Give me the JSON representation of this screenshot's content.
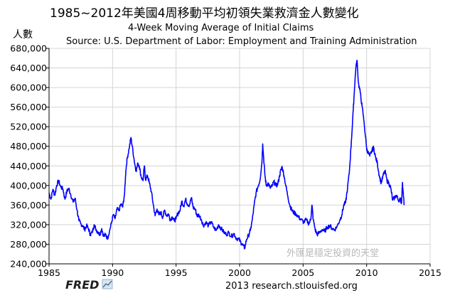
{
  "chart_data": {
    "type": "line",
    "title": "1985~2012年美國4周移動平均初領失業救濟金人數變化",
    "ylabel": "人數",
    "subtitle_line1": "4-Week Moving Average of Initial Claims",
    "subtitle_line2": "Source: U.S. Department of Labor: Employment and Training Administration",
    "xlim": [
      1985,
      2015
    ],
    "ylim": [
      240000,
      680000
    ],
    "x_ticks": [
      1985,
      1990,
      1995,
      2000,
      2005,
      2010,
      2015
    ],
    "x_tick_labels": [
      "1985",
      "1990",
      "1995",
      "2000",
      "2005",
      "2010",
      "2015"
    ],
    "y_ticks": [
      240000,
      280000,
      320000,
      360000,
      400000,
      440000,
      480000,
      520000,
      560000,
      600000,
      640000,
      680000
    ],
    "y_tick_labels": [
      "240,000",
      "280,000",
      "320,000",
      "360,000",
      "400,000",
      "440,000",
      "480,000",
      "520,000",
      "560,000",
      "600,000",
      "640,000",
      "680,000"
    ],
    "grid": true,
    "line_color": "#0000ff",
    "series": [
      {
        "values": [
          [
            1985.0,
            385000
          ],
          [
            1985.15,
            372000
          ],
          [
            1985.3,
            392000
          ],
          [
            1985.45,
            380000
          ],
          [
            1985.6,
            400000
          ],
          [
            1985.75,
            410000
          ],
          [
            1985.9,
            398000
          ],
          [
            1986.1,
            392000
          ],
          [
            1986.25,
            372000
          ],
          [
            1986.4,
            388000
          ],
          [
            1986.55,
            394000
          ],
          [
            1986.7,
            382000
          ],
          [
            1986.9,
            366000
          ],
          [
            1987.05,
            374000
          ],
          [
            1987.2,
            350000
          ],
          [
            1987.35,
            328000
          ],
          [
            1987.5,
            322000
          ],
          [
            1987.65,
            318000
          ],
          [
            1987.8,
            310000
          ],
          [
            1987.95,
            318000
          ],
          [
            1988.1,
            312000
          ],
          [
            1988.25,
            300000
          ],
          [
            1988.4,
            304000
          ],
          [
            1988.55,
            320000
          ],
          [
            1988.7,
            310000
          ],
          [
            1988.85,
            305000
          ],
          [
            1989.0,
            300000
          ],
          [
            1989.15,
            312000
          ],
          [
            1989.3,
            296000
          ],
          [
            1989.45,
            300000
          ],
          [
            1989.6,
            292000
          ],
          [
            1989.75,
            306000
          ],
          [
            1989.9,
            322000
          ],
          [
            1990.05,
            340000
          ],
          [
            1990.2,
            332000
          ],
          [
            1990.35,
            352000
          ],
          [
            1990.5,
            348000
          ],
          [
            1990.65,
            362000
          ],
          [
            1990.8,
            356000
          ],
          [
            1990.95,
            385000
          ],
          [
            1991.05,
            432000
          ],
          [
            1991.15,
            455000
          ],
          [
            1991.3,
            475000
          ],
          [
            1991.45,
            498000
          ],
          [
            1991.55,
            480000
          ],
          [
            1991.7,
            452000
          ],
          [
            1991.85,
            430000
          ],
          [
            1992.0,
            445000
          ],
          [
            1992.1,
            440000
          ],
          [
            1992.25,
            418000
          ],
          [
            1992.4,
            410000
          ],
          [
            1992.5,
            440000
          ],
          [
            1992.6,
            412000
          ],
          [
            1992.75,
            420000
          ],
          [
            1992.9,
            405000
          ],
          [
            1993.05,
            388000
          ],
          [
            1993.2,
            362000
          ],
          [
            1993.35,
            338000
          ],
          [
            1993.5,
            352000
          ],
          [
            1993.65,
            340000
          ],
          [
            1993.8,
            345000
          ],
          [
            1993.95,
            335000
          ],
          [
            1994.1,
            350000
          ],
          [
            1994.25,
            338000
          ],
          [
            1994.4,
            342000
          ],
          [
            1994.55,
            330000
          ],
          [
            1994.7,
            336000
          ],
          [
            1994.85,
            328000
          ],
          [
            1995.0,
            332000
          ],
          [
            1995.15,
            344000
          ],
          [
            1995.3,
            348000
          ],
          [
            1995.45,
            368000
          ],
          [
            1995.6,
            358000
          ],
          [
            1995.75,
            372000
          ],
          [
            1995.9,
            362000
          ],
          [
            1996.05,
            360000
          ],
          [
            1996.2,
            375000
          ],
          [
            1996.35,
            355000
          ],
          [
            1996.5,
            352000
          ],
          [
            1996.65,
            338000
          ],
          [
            1996.8,
            340000
          ],
          [
            1997.0,
            330000
          ],
          [
            1997.15,
            318000
          ],
          [
            1997.35,
            325000
          ],
          [
            1997.55,
            318000
          ],
          [
            1997.75,
            326000
          ],
          [
            1997.95,
            315000
          ],
          [
            1998.15,
            308000
          ],
          [
            1998.35,
            320000
          ],
          [
            1998.55,
            312000
          ],
          [
            1998.75,
            305000
          ],
          [
            1998.95,
            300000
          ],
          [
            1999.15,
            304000
          ],
          [
            1999.35,
            296000
          ],
          [
            1999.55,
            302000
          ],
          [
            1999.75,
            292000
          ],
          [
            1999.95,
            290000
          ],
          [
            2000.1,
            284000
          ],
          [
            2000.25,
            278000
          ],
          [
            2000.4,
            272000
          ],
          [
            2000.55,
            290000
          ],
          [
            2000.7,
            298000
          ],
          [
            2000.85,
            308000
          ],
          [
            2001.0,
            330000
          ],
          [
            2001.15,
            360000
          ],
          [
            2001.3,
            385000
          ],
          [
            2001.45,
            398000
          ],
          [
            2001.6,
            410000
          ],
          [
            2001.75,
            445000
          ],
          [
            2001.82,
            485000
          ],
          [
            2001.9,
            455000
          ],
          [
            2002.0,
            420000
          ],
          [
            2002.1,
            400000
          ],
          [
            2002.25,
            405000
          ],
          [
            2002.4,
            395000
          ],
          [
            2002.55,
            398000
          ],
          [
            2002.7,
            408000
          ],
          [
            2002.85,
            400000
          ],
          [
            2003.0,
            402000
          ],
          [
            2003.15,
            420000
          ],
          [
            2003.25,
            432000
          ],
          [
            2003.35,
            438000
          ],
          [
            2003.5,
            420000
          ],
          [
            2003.65,
            398000
          ],
          [
            2003.8,
            378000
          ],
          [
            2003.95,
            360000
          ],
          [
            2004.1,
            350000
          ],
          [
            2004.25,
            345000
          ],
          [
            2004.45,
            342000
          ],
          [
            2004.65,
            335000
          ],
          [
            2004.85,
            330000
          ],
          [
            2005.05,
            325000
          ],
          [
            2005.25,
            330000
          ],
          [
            2005.45,
            322000
          ],
          [
            2005.6,
            330000
          ],
          [
            2005.7,
            360000
          ],
          [
            2005.8,
            330000
          ],
          [
            2005.95,
            310000
          ],
          [
            2006.1,
            300000
          ],
          [
            2006.3,
            304000
          ],
          [
            2006.5,
            310000
          ],
          [
            2006.7,
            306000
          ],
          [
            2006.9,
            315000
          ],
          [
            2007.1,
            318000
          ],
          [
            2007.3,
            312000
          ],
          [
            2007.5,
            310000
          ],
          [
            2007.7,
            318000
          ],
          [
            2007.9,
            330000
          ],
          [
            2008.05,
            340000
          ],
          [
            2008.2,
            360000
          ],
          [
            2008.35,
            365000
          ],
          [
            2008.5,
            395000
          ],
          [
            2008.65,
            430000
          ],
          [
            2008.8,
            490000
          ],
          [
            2008.95,
            555000
          ],
          [
            2009.05,
            600000
          ],
          [
            2009.15,
            640000
          ],
          [
            2009.25,
            655000
          ],
          [
            2009.35,
            610000
          ],
          [
            2009.5,
            590000
          ],
          [
            2009.65,
            560000
          ],
          [
            2009.8,
            530000
          ],
          [
            2010.0,
            475000
          ],
          [
            2010.1,
            468000
          ],
          [
            2010.25,
            460000
          ],
          [
            2010.4,
            470000
          ],
          [
            2010.55,
            478000
          ],
          [
            2010.7,
            458000
          ],
          [
            2010.85,
            445000
          ],
          [
            2011.0,
            420000
          ],
          [
            2011.15,
            405000
          ],
          [
            2011.3,
            420000
          ],
          [
            2011.45,
            430000
          ],
          [
            2011.6,
            410000
          ],
          [
            2011.75,
            405000
          ],
          [
            2011.9,
            395000
          ],
          [
            2012.05,
            370000
          ],
          [
            2012.2,
            375000
          ],
          [
            2012.35,
            380000
          ],
          [
            2012.5,
            370000
          ],
          [
            2012.65,
            372000
          ],
          [
            2012.75,
            365000
          ],
          [
            2012.82,
            405000
          ],
          [
            2012.88,
            388000
          ],
          [
            2012.95,
            360000
          ]
        ]
      }
    ]
  },
  "footer": {
    "logo": "FRED",
    "source_text": "2013 research.stlouisfed.org",
    "watermark": "外匯是穩定投資的天堂"
  },
  "icons": {
    "logo_mark": "fred-chart-mark-icon"
  }
}
